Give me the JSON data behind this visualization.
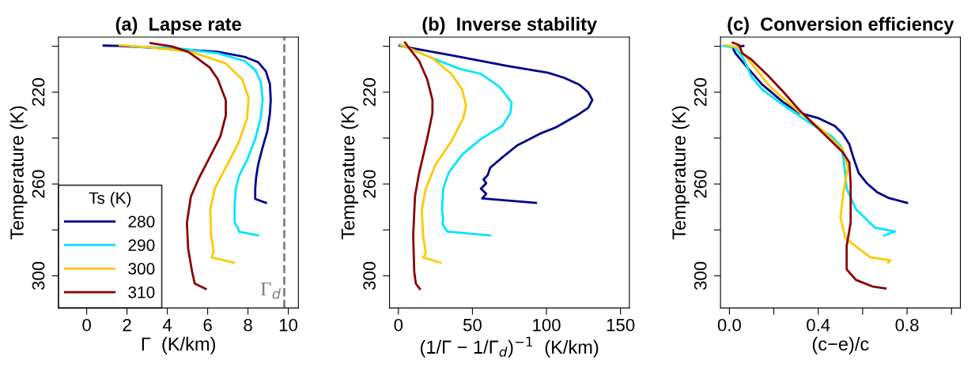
{
  "chart_data": [
    {
      "type": "line",
      "title": "(a)  Lapse rate",
      "xlabel": "Γ  (K/km)",
      "ylabel": "Temperature (K)",
      "legend_title": "Ts (K)",
      "legend": "bottom left",
      "grid": false,
      "line_style": "solid",
      "marker": "none",
      "xlim": [
        -1.4,
        10.5
      ],
      "xticks": [
        0,
        2,
        4,
        6,
        8,
        10
      ],
      "ylim": [
        314,
        196
      ],
      "yticks": [
        {
          "value": 200,
          "label": null
        },
        220,
        {
          "value": 240,
          "label": null
        },
        260,
        {
          "value": 280,
          "label": null
        },
        300
      ],
      "ref_lines": [
        {
          "axis": "x",
          "value": 9.8,
          "label": "Γ$_{d}$",
          "color": "#808080",
          "line_style": "dashed"
        }
      ],
      "series": [
        {
          "name": "280",
          "color": "#00008b",
          "x": [
            0.84,
            1.57,
            4.5,
            6.5,
            7.83,
            8.5,
            8.89,
            9.09,
            9.13,
            9.09,
            8.96,
            8.7,
            8.5,
            8.4,
            8.36,
            8.36,
            8.89
          ],
          "values": [
            199.7,
            199.8,
            201.2,
            202.4,
            204.6,
            206.9,
            210.9,
            216.6,
            223.4,
            229.1,
            237.0,
            244.9,
            251.8,
            257.5,
            262.0,
            266.5,
            268.2
          ]
        },
        {
          "name": "290",
          "color": "#00e5ff",
          "x": [
            2.24,
            4.5,
            6.5,
            7.83,
            8.36,
            8.63,
            8.73,
            8.63,
            8.36,
            7.96,
            7.56,
            7.4,
            7.34,
            7.34,
            7.5,
            7.56,
            8.5
          ],
          "values": [
            200.1,
            200.9,
            203.0,
            206.4,
            210.3,
            215.4,
            223.4,
            231.3,
            240.4,
            249.5,
            256.4,
            262.0,
            268.8,
            276.8,
            279.1,
            280.8,
            282.4
          ]
        },
        {
          "name": "300",
          "color": "#ffc800",
          "x": [
            1.64,
            3.17,
            5.17,
            6.9,
            7.7,
            8.03,
            7.96,
            7.56,
            6.9,
            6.36,
            6.13,
            6.17,
            6.3,
            6.2,
            7.3
          ],
          "values": [
            199.5,
            200.5,
            202.4,
            207.5,
            214.3,
            222.2,
            231.3,
            241.5,
            252.8,
            261.9,
            271.0,
            282.4,
            289.2,
            292.0,
            294.3
          ]
        },
        {
          "name": "310",
          "color": "#8b0000",
          "x": [
            3.17,
            4.23,
            5.03,
            5.57,
            6.1,
            6.5,
            6.9,
            6.9,
            6.63,
            6.1,
            5.57,
            5.17,
            4.97,
            5.03,
            5.23,
            5.36,
            5.9
          ],
          "values": [
            198.6,
            200.1,
            202.4,
            205.8,
            209.2,
            214.3,
            223.4,
            230.2,
            239.3,
            248.4,
            257.4,
            265.4,
            276.8,
            288.1,
            298.3,
            303.4,
            305.7
          ]
        }
      ]
    },
    {
      "type": "line",
      "title": "(b)  Inverse stability",
      "xlabel": "(1/Γ − 1/Γ$_{d}$)$^{−1}$  (K/km)",
      "ylabel": "Temperature (K)",
      "grid": false,
      "line_style": "solid",
      "marker": "none",
      "xlim": [
        -6,
        156
      ],
      "xticks": [
        0,
        50,
        100,
        150
      ],
      "ylim": [
        314,
        196
      ],
      "yticks": [
        {
          "value": 200,
          "label": null
        },
        220,
        {
          "value": 240,
          "label": null
        },
        260,
        {
          "value": 280,
          "label": null
        },
        300
      ],
      "series": [
        {
          "color": "#00008b",
          "x": [
            0.7,
            6.7,
            37.5,
            73.8,
            101.0,
            111.9,
            121.9,
            128.2,
            131.0,
            128.2,
            121.9,
            106.5,
            95.6,
            80.2,
            70.2,
            62.0,
            60.2,
            57.5,
            59.3,
            55.7,
            59.3,
            56.6,
            92.9
          ],
          "values": [
            199.7,
            200.5,
            204.1,
            208.6,
            211.5,
            213.7,
            216.6,
            220.0,
            223.4,
            226.8,
            229.6,
            235.3,
            238.1,
            243.2,
            248.4,
            252.9,
            256.3,
            258.0,
            259.7,
            262.0,
            264.3,
            266.3,
            268.2
          ]
        },
        {
          "color": "#00e5ff",
          "x": [
            1.3,
            6.7,
            23.0,
            41.2,
            55.7,
            68.4,
            76.5,
            75.6,
            70.2,
            55.7,
            43.0,
            33.9,
            30.3,
            29.4,
            30.3,
            29.7,
            33.0,
            62.0
          ],
          "values": [
            199.5,
            200.7,
            205.2,
            209.8,
            212.0,
            217.7,
            224.5,
            229.1,
            234.7,
            240.4,
            247.2,
            255.2,
            262.0,
            271.0,
            275.6,
            277.3,
            280.7,
            282.4
          ]
        },
        {
          "color": "#ffc800",
          "x": [
            1.3,
            8.5,
            23.0,
            35.7,
            43.0,
            45.7,
            43.9,
            35.7,
            24.9,
            18.5,
            15.8,
            16.7,
            18.5,
            16.7,
            28.5
          ],
          "values": [
            199.3,
            201.2,
            205.2,
            212.0,
            218.8,
            225.7,
            231.3,
            241.5,
            251.8,
            262.0,
            271.0,
            282.4,
            290.4,
            292.0,
            294.3
          ]
        },
        {
          "color": "#8b0000",
          "x": [
            4.5,
            8.5,
            14.0,
            19.4,
            23.0,
            23.0,
            19.4,
            14.0,
            11.2,
            10.0,
            10.7,
            11.8,
            14.5
          ],
          "values": [
            198.4,
            201.8,
            206.4,
            214.3,
            223.4,
            229.1,
            240.4,
            255.2,
            265.4,
            282.4,
            298.3,
            303.4,
            305.7
          ]
        }
      ]
    },
    {
      "type": "line",
      "title": "(c)  Conversion efficiency",
      "xlabel": "(c−e)/c",
      "ylabel": "Temperature (K)",
      "grid": false,
      "line_style": "solid",
      "marker": "none",
      "xlim": [
        -0.04,
        1.04
      ],
      "xticks": [
        {
          "value": 0.0,
          "label": "0.0"
        },
        {
          "value": 0.2,
          "label": null
        },
        0.4,
        {
          "value": 0.6,
          "label": null
        },
        0.8,
        {
          "value": 1.0,
          "label": null
        }
      ],
      "ylim": [
        314,
        196
      ],
      "yticks": [
        {
          "value": 200,
          "label": null
        },
        220,
        {
          "value": 240,
          "label": null
        },
        260,
        {
          "value": 280,
          "label": null
        },
        300
      ],
      "series": [
        {
          "color": "#00008b",
          "x": [
            0.063,
            0.015,
            0.027,
            0.075,
            0.147,
            0.244,
            0.317,
            0.401,
            0.474,
            0.51,
            0.54,
            0.558,
            0.582,
            0.619,
            0.667,
            0.715,
            0.8
          ],
          "values": [
            199.8,
            200.7,
            203.0,
            208.6,
            216.6,
            224.5,
            229.1,
            231.3,
            234.7,
            238.1,
            242.7,
            248.4,
            255.2,
            259.7,
            263.7,
            266.0,
            268.2
          ]
        },
        {
          "color": "#00e5ff",
          "x": [
            -0.028,
            0.027,
            0.063,
            0.099,
            0.147,
            0.244,
            0.365,
            0.462,
            0.504,
            0.516,
            0.528,
            0.57,
            0.631,
            0.655,
            0.746,
            0.697
          ],
          "values": [
            199.8,
            200.7,
            205.2,
            213.2,
            218.8,
            225.7,
            233.6,
            239.3,
            243.8,
            250.6,
            262.0,
            271.0,
            276.7,
            279.0,
            280.7,
            282.4
          ]
        },
        {
          "color": "#ffc800",
          "x": [
            -0.016,
            0.039,
            0.099,
            0.184,
            0.305,
            0.425,
            0.51,
            0.534,
            0.516,
            0.5,
            0.522,
            0.582,
            0.636,
            0.724,
            0.715
          ],
          "values": [
            199.5,
            200.4,
            207.5,
            217.7,
            227.9,
            237.0,
            244.9,
            252.9,
            262.0,
            274.4,
            283.5,
            288.1,
            292.0,
            293.2,
            294.3
          ]
        },
        {
          "color": "#8b0000",
          "x": [
            0.015,
            0.045,
            0.057,
            0.099,
            0.172,
            0.244,
            0.317,
            0.413,
            0.51,
            0.54,
            0.546,
            0.546,
            0.528,
            0.528,
            0.57,
            0.643,
            0.703
          ],
          "values": [
            198.4,
            199.5,
            203.0,
            205.8,
            212.6,
            220.0,
            228.0,
            237.0,
            246.1,
            250.6,
            259.7,
            276.8,
            287.0,
            297.2,
            301.8,
            304.6,
            305.5
          ]
        }
      ]
    }
  ]
}
